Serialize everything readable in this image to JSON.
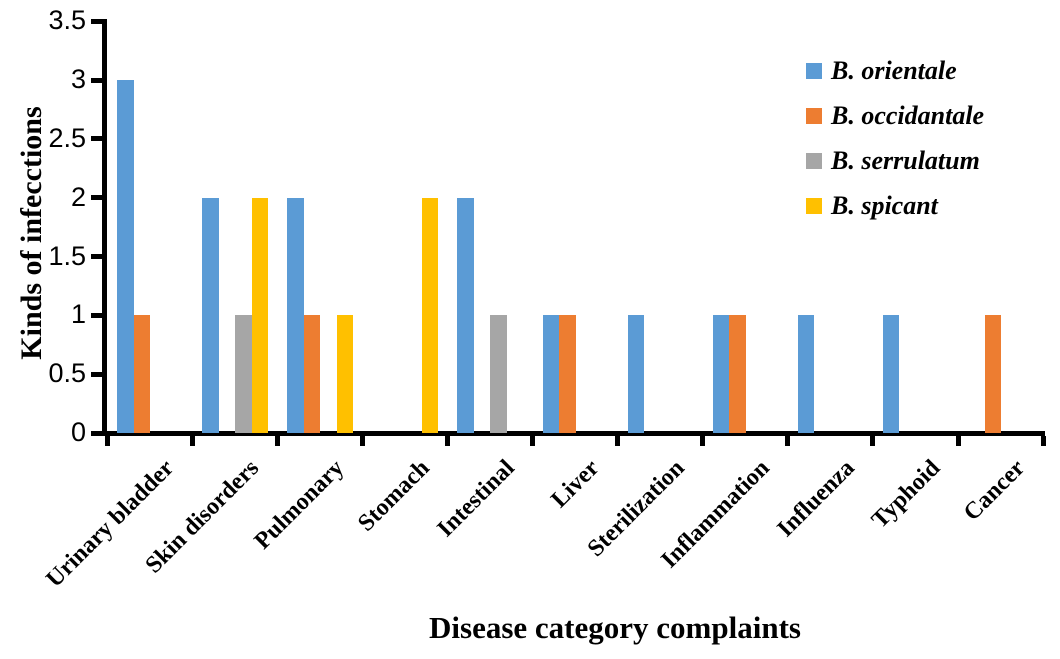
{
  "chart_data": {
    "type": "bar",
    "title": "",
    "xlabel": "Disease category complaints",
    "ylabel": "Kinds of infecctions",
    "ylim": [
      0,
      3.5
    ],
    "y_ticks": [
      0,
      0.5,
      1,
      1.5,
      2,
      2.5,
      3,
      3.5
    ],
    "y_tick_labels": [
      "0",
      "0.5",
      "1",
      "1.5",
      "2",
      "2.5",
      "3",
      "3.5"
    ],
    "grid": false,
    "legend_position": "inside-top-right",
    "axis_color": "#000000",
    "categories": [
      "Urinary bladder",
      "Skin disorders",
      "Pulmonary",
      "Stomach",
      "Intestinal",
      "Liver",
      "Sterilization",
      "Inflammation",
      "Influenza",
      "Typhoid",
      "Cancer"
    ],
    "series": [
      {
        "name": "B. orientale",
        "color": "#5B9BD5",
        "values": [
          3,
          2,
          2,
          0,
          2,
          1,
          1,
          1,
          1,
          1,
          0
        ]
      },
      {
        "name": "B. occidantale",
        "color": "#ED7D31",
        "values": [
          1,
          0,
          1,
          0,
          0,
          1,
          0,
          1,
          0,
          0,
          1
        ]
      },
      {
        "name": "B. serrulatum",
        "color": "#A6A6A6",
        "values": [
          0,
          1,
          0,
          0,
          1,
          0,
          0,
          0,
          0,
          0,
          0
        ]
      },
      {
        "name": "B. spicant",
        "color": "#FFC000",
        "values": [
          0,
          2,
          1,
          2,
          0,
          0,
          0,
          0,
          0,
          0,
          0
        ]
      }
    ]
  }
}
